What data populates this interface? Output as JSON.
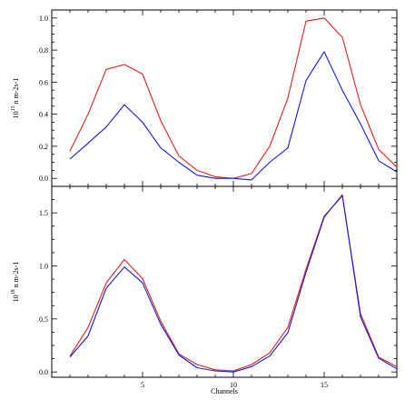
{
  "chart_data": [
    {
      "type": "line",
      "ylabel_prefix": "10",
      "ylabel_exp": "15",
      "ylabel_unit": "n m-2s-1",
      "xlabel": "",
      "xlim": [
        0,
        19
      ],
      "ylim": [
        -0.05,
        1.05
      ],
      "xticks": [
        5,
        10,
        15
      ],
      "xtick_labels": [],
      "yticks": [
        0.0,
        0.2,
        0.4,
        0.6,
        0.8,
        1.0
      ],
      "ytick_labels": [
        "0.0",
        "0.2",
        "0.4",
        "0.6",
        "0.8",
        "1.0"
      ],
      "x": [
        1,
        2,
        3,
        4,
        5,
        6,
        7,
        8,
        9,
        10,
        11,
        12,
        13,
        14,
        15,
        16,
        17,
        18,
        19
      ],
      "series": [
        {
          "color": "#e02020",
          "values": [
            0.17,
            0.4,
            0.68,
            0.71,
            0.65,
            0.36,
            0.14,
            0.05,
            0.01,
            0.0,
            0.03,
            0.2,
            0.5,
            0.98,
            1.0,
            0.88,
            0.46,
            0.18,
            0.07
          ]
        },
        {
          "color": "#1a1acc",
          "values": [
            0.12,
            0.22,
            0.32,
            0.46,
            0.35,
            0.19,
            0.1,
            0.02,
            0.0,
            0.0,
            -0.01,
            0.1,
            0.19,
            0.61,
            0.79,
            0.55,
            0.34,
            0.11,
            0.04
          ]
        }
      ]
    },
    {
      "type": "line",
      "ylabel_prefix": "10",
      "ylabel_exp": "18",
      "ylabel_unit": "n m-2s-1",
      "xlabel": "Channels",
      "xlim": [
        0,
        19
      ],
      "ylim": [
        -0.05,
        1.75
      ],
      "xticks": [
        5,
        10,
        15
      ],
      "xtick_labels": [
        "5",
        "10",
        "15"
      ],
      "yticks": [
        0.0,
        0.5,
        1.0,
        1.5
      ],
      "ytick_labels": [
        "0.0",
        "0.5",
        "1.0",
        "1.5"
      ],
      "x": [
        1,
        2,
        3,
        4,
        5,
        6,
        7,
        8,
        9,
        10,
        11,
        12,
        13,
        14,
        15,
        16,
        17,
        18,
        19
      ],
      "series": [
        {
          "color": "#e02020",
          "values": [
            0.15,
            0.42,
            0.84,
            1.06,
            0.88,
            0.48,
            0.17,
            0.07,
            0.02,
            0.01,
            0.07,
            0.18,
            0.42,
            0.97,
            1.47,
            1.66,
            0.55,
            0.14,
            0.05
          ]
        },
        {
          "color": "#1a1acc",
          "values": [
            0.14,
            0.34,
            0.79,
            0.99,
            0.84,
            0.45,
            0.16,
            0.04,
            0.01,
            0.0,
            0.05,
            0.15,
            0.37,
            0.94,
            1.46,
            1.67,
            0.52,
            0.13,
            0.03
          ]
        }
      ]
    }
  ]
}
